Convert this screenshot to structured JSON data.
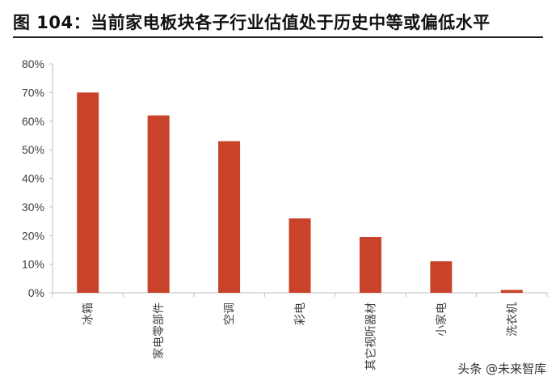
{
  "header": {
    "title": "图 104：当前家电板块各子行业估值处于历史中等或偏低水平"
  },
  "watermark": {
    "text": "头条 @未来智库"
  },
  "colors": {
    "bar": "#c9432a",
    "axis": "#bfbfbf",
    "text": "#404040"
  },
  "chart_data": {
    "type": "bar",
    "title": "",
    "xlabel": "",
    "ylabel": "",
    "categories": [
      "冰箱",
      "家电零部件",
      "空调",
      "彩电",
      "其它视听器材",
      "小家电",
      "洗衣机"
    ],
    "values": [
      0.7,
      0.62,
      0.53,
      0.26,
      0.195,
      0.11,
      0.01
    ],
    "ylim": [
      0,
      0.8
    ],
    "yticks": [
      0,
      0.1,
      0.2,
      0.3,
      0.4,
      0.5,
      0.6,
      0.7,
      0.8
    ],
    "ytick_labels": [
      "0%",
      "10%",
      "20%",
      "30%",
      "40%",
      "50%",
      "60%",
      "70%",
      "80%"
    ],
    "grid": false,
    "legend": "none"
  }
}
